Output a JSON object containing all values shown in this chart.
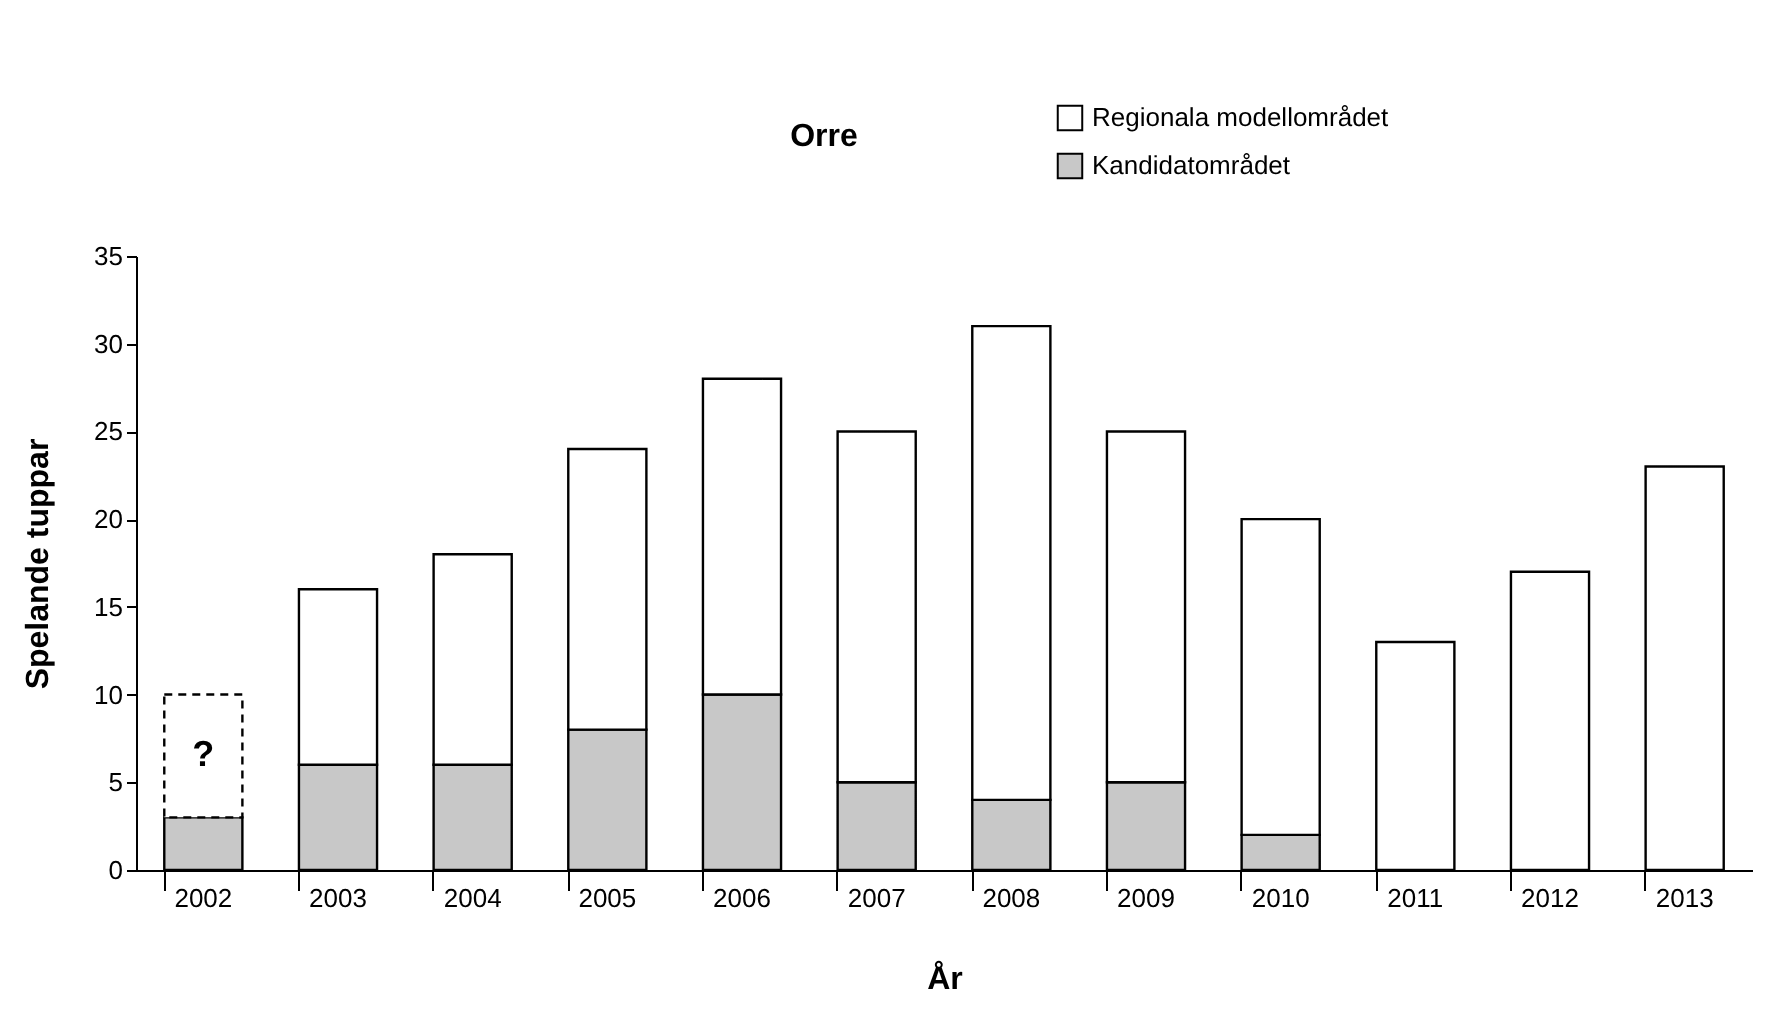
{
  "chart_data": {
    "type": "bar",
    "title": "Orre",
    "xlabel": "År",
    "ylabel": "Spelande tuppar",
    "stacked": true,
    "categories": [
      "2002",
      "2003",
      "2004",
      "2005",
      "2006",
      "2007",
      "2008",
      "2009",
      "2010",
      "2011",
      "2012",
      "2013"
    ],
    "series": [
      {
        "name": "Kandidatområdet",
        "color": "#c8c8c8",
        "values": [
          3,
          6,
          6,
          8,
          10,
          5,
          4,
          5,
          2,
          0,
          0,
          0
        ]
      },
      {
        "name": "Regionala modellområdet",
        "color": "#ffffff",
        "values": [
          null,
          10,
          12,
          16,
          18,
          20,
          27,
          20,
          18,
          13,
          17,
          23
        ]
      },
      {
        "color": "#ffffff",
        "line_style": "dashed",
        "values": [
          7,
          null,
          null,
          null,
          null,
          null,
          null,
          null,
          null,
          null,
          null,
          null
        ]
      }
    ],
    "annotations": [
      "?"
    ],
    "ylim": [
      0,
      35
    ],
    "yticks": [
      0,
      5,
      10,
      15,
      20,
      25,
      30,
      35
    ],
    "grid": false,
    "legend": "top right"
  }
}
